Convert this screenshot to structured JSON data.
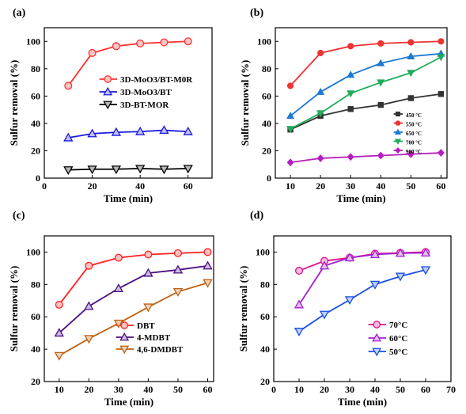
{
  "chart_data": [
    {
      "panel": "(a)",
      "type": "line",
      "xlabel": "Time (min)",
      "ylabel": "Sulfur removal (%)",
      "xlim": [
        0,
        70
      ],
      "ylim": [
        0,
        110
      ],
      "xticks": [
        0,
        20,
        40,
        60
      ],
      "yticks": [
        0,
        20,
        40,
        60,
        80,
        100
      ],
      "legend_position": "middle-right",
      "x": [
        10,
        20,
        30,
        40,
        50,
        60
      ],
      "series": [
        {
          "name": "3D-MoO3/BT-M0R",
          "values": [
            67.5,
            91.5,
            96.5,
            98.5,
            99.3,
            100
          ],
          "color": "#ff3030",
          "marker": "circle"
        },
        {
          "name": "3D-MoO3/BT",
          "values": [
            29.5,
            32.5,
            33.5,
            34,
            35,
            34
          ],
          "color": "#1a1adf",
          "marker": "triangle-up"
        },
        {
          "name": "3D-BT-MOR",
          "values": [
            6,
            6.5,
            6.5,
            7,
            6.5,
            7
          ],
          "color": "#000000",
          "marker": "triangle-down"
        }
      ]
    },
    {
      "panel": "(b)",
      "type": "line",
      "xlabel": "Time (min)",
      "ylabel": "Sulfur removal (%)",
      "xlim": [
        5,
        62
      ],
      "ylim": [
        0,
        110
      ],
      "xticks": [
        10,
        20,
        30,
        40,
        50,
        60
      ],
      "yticks": [
        0,
        20,
        40,
        60,
        80,
        100
      ],
      "legend_position": "lower-right",
      "x": [
        10,
        20,
        30,
        40,
        50,
        60
      ],
      "series": [
        {
          "name": "450 °C",
          "values": [
            35.5,
            45.5,
            50.5,
            53.5,
            58.5,
            61.5
          ],
          "color": "#333333",
          "marker": "square"
        },
        {
          "name": "550 °C",
          "values": [
            67.5,
            91.5,
            96.5,
            98.5,
            99.3,
            100
          ],
          "color": "#ee3333",
          "marker": "circle"
        },
        {
          "name": "650 °C",
          "values": [
            45.5,
            63,
            75.5,
            84,
            89,
            91
          ],
          "color": "#1e78d2",
          "marker": "triangle-up"
        },
        {
          "name": "700 °C",
          "values": [
            36,
            47.5,
            62,
            70,
            77,
            88.5
          ],
          "color": "#22aa5a",
          "marker": "triangle-down"
        },
        {
          "name": "900 °C",
          "values": [
            11.5,
            14.5,
            15.5,
            16.5,
            17.5,
            18.5
          ],
          "color": "#b51ebe",
          "marker": "diamond"
        }
      ]
    },
    {
      "panel": "(c)",
      "type": "line",
      "xlabel": "Time (min)",
      "ylabel": "Sulfur removal (%)",
      "xlim": [
        5,
        62
      ],
      "ylim": [
        20,
        110
      ],
      "xticks": [
        10,
        20,
        30,
        40,
        50,
        60
      ],
      "yticks": [
        20,
        40,
        60,
        80,
        100
      ],
      "legend_position": "lower-right",
      "x": [
        10,
        20,
        30,
        40,
        50,
        60
      ],
      "series": [
        {
          "name": "DBT",
          "values": [
            67.5,
            91.5,
            96.5,
            98.5,
            99.3,
            100
          ],
          "color": "#ff2020",
          "marker": "circle"
        },
        {
          "name": "4-MDBT",
          "values": [
            50,
            66.5,
            77.5,
            87,
            89,
            91.5
          ],
          "color": "#4b0f82",
          "marker": "triangle-up"
        },
        {
          "name": "4,6-DMDBT",
          "values": [
            36,
            46.5,
            56,
            66,
            75.5,
            81
          ],
          "color": "#c06010",
          "marker": "triangle-down"
        }
      ]
    },
    {
      "panel": "(d)",
      "type": "line",
      "xlabel": "Time (min)",
      "ylabel": "Sulfur removal (%)",
      "xlim": [
        0,
        70
      ],
      "ylim": [
        20,
        110
      ],
      "xticks": [
        0,
        10,
        20,
        30,
        40,
        50,
        60,
        70
      ],
      "yticks": [
        20,
        40,
        60,
        80,
        100
      ],
      "legend_position": "lower-right",
      "x": [
        10,
        20,
        30,
        40,
        50,
        60
      ],
      "series": [
        {
          "name": "70°C",
          "values": [
            88.5,
            94.5,
            96.5,
            99,
            99.5,
            100
          ],
          "color": "#e0108c",
          "marker": "circle"
        },
        {
          "name": "60°C",
          "values": [
            67.5,
            91.5,
            96.5,
            98.5,
            99.3,
            99.5
          ],
          "color": "#a21ed2",
          "marker": "triangle-up"
        },
        {
          "name": "50°C",
          "values": [
            51,
            61.5,
            70.5,
            80,
            85,
            89
          ],
          "color": "#1a4fe6",
          "marker": "triangle-down"
        }
      ]
    }
  ]
}
